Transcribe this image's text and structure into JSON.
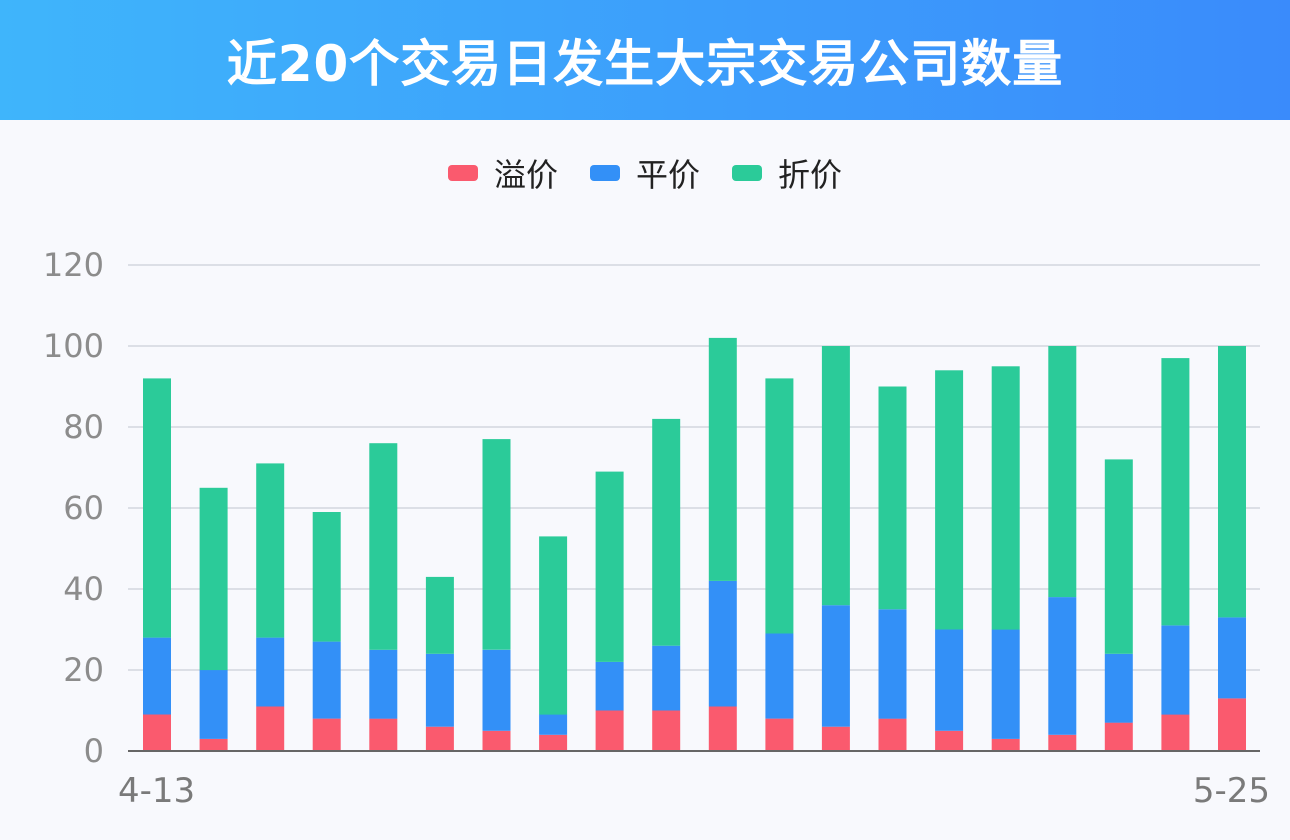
{
  "header": {
    "title": "近20个交易日发生大宗交易公司数量"
  },
  "colors": {
    "premium": "#fa5a6e",
    "par": "#3390f7",
    "discount": "#2bcb99"
  },
  "chart_data": {
    "type": "bar",
    "stacked": true,
    "title": "近20个交易日发生大宗交易公司数量",
    "ylim": [
      0,
      120
    ],
    "yticks": [
      0,
      20,
      40,
      60,
      80,
      100,
      120
    ],
    "x_tick_labels": {
      "first": "4-13",
      "last": "5-25"
    },
    "legend_position": "top-center",
    "series": [
      {
        "name": "溢价",
        "values": [
          9,
          3,
          11,
          8,
          8,
          6,
          5,
          4,
          10,
          10,
          11,
          8,
          6,
          8,
          5,
          3,
          4,
          7,
          9,
          13
        ]
      },
      {
        "name": "平价",
        "values": [
          19,
          17,
          17,
          19,
          17,
          18,
          20,
          5,
          12,
          16,
          31,
          21,
          30,
          27,
          25,
          27,
          34,
          17,
          22,
          20
        ]
      },
      {
        "name": "折价",
        "values": [
          64,
          45,
          43,
          32,
          51,
          19,
          52,
          44,
          47,
          56,
          60,
          63,
          64,
          55,
          64,
          65,
          62,
          48,
          66,
          67
        ]
      }
    ]
  }
}
